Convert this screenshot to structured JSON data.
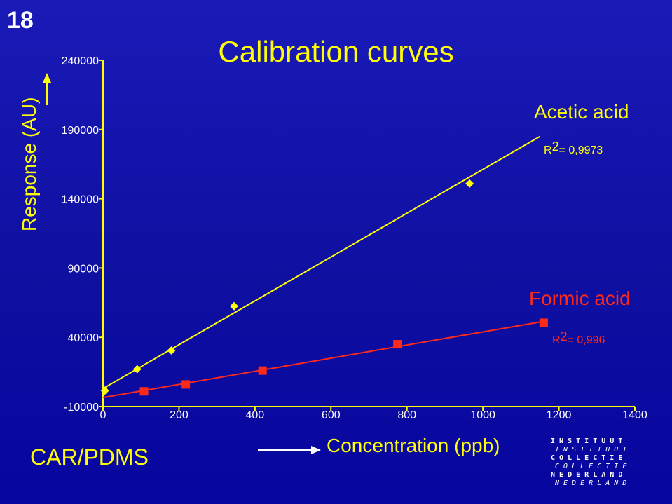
{
  "slide_number": "18",
  "method_label": "CAR/PDMS",
  "logo": {
    "lines": [
      {
        "text": "I N S T I T U U T",
        "italic": false
      },
      {
        "text": "I N S T I T U U T",
        "italic": true
      },
      {
        "text": "C O L L E C T I E",
        "italic": false
      },
      {
        "text": "C O L L E C T I E",
        "italic": true
      },
      {
        "text": "N E D E R L A N D",
        "italic": false
      },
      {
        "text": "N E D E R L A N D",
        "italic": true
      }
    ]
  },
  "colors": {
    "axis": "#ffff00",
    "acetic": "#ffff00",
    "formic": "#ff2a1a",
    "background": "#1010a8"
  },
  "chart_data": {
    "type": "scatter",
    "title": "Calibration curves",
    "xlabel": "Concentration (ppb)",
    "ylabel": "Response (AU)",
    "xlim": [
      0,
      1400
    ],
    "ylim": [
      -10000,
      240000
    ],
    "xticks": [
      0,
      200,
      400,
      600,
      800,
      1000,
      1200,
      1400
    ],
    "yticks": [
      -10000,
      40000,
      90000,
      140000,
      190000,
      240000
    ],
    "xtick_labels": [
      "0",
      "200",
      "400",
      "600",
      "800",
      "1000",
      "1200",
      "1400"
    ],
    "ytick_labels": [
      "-10000",
      "40000",
      "90000",
      "140000",
      "190000",
      "240000"
    ],
    "grid": false,
    "series": [
      {
        "name": "Acetic acid",
        "marker": "diamond",
        "r2_label": "R",
        "r2_sup": "2",
        "r2_value": "= 0,9973",
        "points": [
          {
            "x": 5,
            "y": 1500
          },
          {
            "x": 90,
            "y": 17000
          },
          {
            "x": 180,
            "y": 30500
          },
          {
            "x": 345,
            "y": 62500
          },
          {
            "x": 965,
            "y": 151000
          }
        ],
        "trendline": [
          {
            "x": 0,
            "y": 3000
          },
          {
            "x": 1150,
            "y": 185000
          }
        ]
      },
      {
        "name": "Formic acid",
        "marker": "square",
        "r2_label": "R",
        "r2_sup": "2",
        "r2_value": "= 0,996",
        "points": [
          {
            "x": 108,
            "y": 1000
          },
          {
            "x": 218,
            "y": 6000
          },
          {
            "x": 420,
            "y": 16000
          },
          {
            "x": 775,
            "y": 35000
          },
          {
            "x": 1160,
            "y": 50500
          }
        ],
        "trendline": [
          {
            "x": 0,
            "y": -3500
          },
          {
            "x": 1160,
            "y": 51500
          }
        ]
      }
    ]
  }
}
